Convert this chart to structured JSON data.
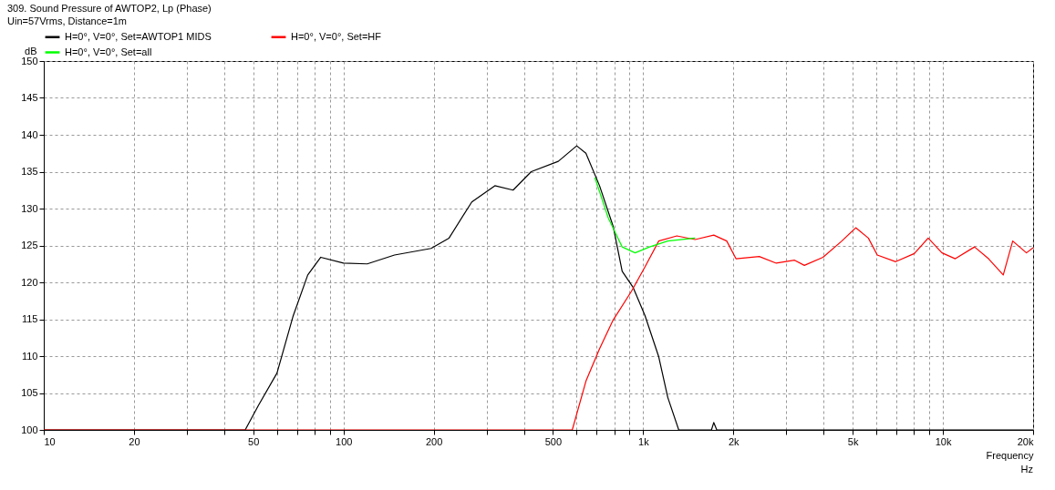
{
  "chart_data": {
    "type": "line",
    "title": "309. Sound Pressure of AWTOP2, Lp (Phase)",
    "subtitle": "Uin=57Vrms, Distance=1m",
    "xlabel": "Frequency",
    "ylabel": "dB",
    "annotations": [
      "Hz"
    ],
    "log": "x",
    "grid": true,
    "legend": "top left",
    "xlim": [
      10,
      20000
    ],
    "ylim": [
      100,
      150
    ],
    "xticks": [
      10,
      20,
      {
        "value": 30,
        "label": null
      },
      {
        "value": 40,
        "label": null
      },
      50,
      {
        "value": 60,
        "label": null
      },
      {
        "value": 70,
        "label": null
      },
      {
        "value": 80,
        "label": null
      },
      {
        "value": 90,
        "label": null
      },
      100,
      200,
      {
        "value": 300,
        "label": null
      },
      {
        "value": 400,
        "label": null
      },
      500,
      {
        "value": 600,
        "label": null
      },
      {
        "value": 700,
        "label": null
      },
      {
        "value": 800,
        "label": null
      },
      {
        "value": 900,
        "label": null
      },
      {
        "value": 1000,
        "label": "1k"
      },
      {
        "value": 2000,
        "label": "2k"
      },
      {
        "value": 3000,
        "label": null
      },
      {
        "value": 4000,
        "label": null
      },
      {
        "value": 5000,
        "label": "5k"
      },
      {
        "value": 6000,
        "label": null
      },
      {
        "value": 7000,
        "label": null
      },
      {
        "value": 8000,
        "label": null
      },
      {
        "value": 9000,
        "label": null
      },
      {
        "value": 10000,
        "label": "10k"
      },
      {
        "value": 20000,
        "label": "20k"
      }
    ],
    "yticks": [
      100,
      105,
      110,
      115,
      120,
      125,
      130,
      135,
      140,
      145,
      150
    ],
    "series": [
      {
        "name": "H=0°, V=0°, Set=AWTOP1 MIDS",
        "color": "#000000",
        "x": [
          10,
          47,
          52,
          60,
          68,
          76,
          84,
          100,
          120,
          148,
          196,
          225,
          268,
          320,
          368,
          423,
          521,
          600,
          644,
          715,
          794,
          851,
          926,
          1014,
          1127,
          1208,
          1314,
          1690,
          1720,
          1760,
          20000
        ],
        "values": [
          100,
          100,
          103.3,
          107.7,
          115.5,
          121,
          123.4,
          122.6,
          122.5,
          123.7,
          124.6,
          126,
          130.9,
          133.1,
          132.5,
          135,
          136.4,
          138.5,
          137.5,
          133.1,
          127.6,
          121.5,
          119.3,
          115.5,
          109.9,
          104.4,
          100,
          100,
          101,
          100,
          100
        ]
      },
      {
        "name": "H=0°, V=0°, Set=HF",
        "color": "#ff0000",
        "x": [
          10,
          580,
          644,
          715,
          794,
          914,
          1014,
          1127,
          1295,
          1490,
          1720,
          1900,
          2040,
          2440,
          2780,
          3200,
          3450,
          3980,
          4600,
          5120,
          5640,
          6040,
          6960,
          8030,
          8930,
          9930,
          11000,
          12750,
          14200,
          15900,
          17100,
          19000,
          20000
        ],
        "values": [
          100,
          100,
          106.6,
          111,
          114.9,
          118.8,
          122.1,
          125.6,
          126.3,
          125.8,
          126.4,
          125.6,
          123.2,
          123.5,
          122.6,
          123,
          122.3,
          123.4,
          125.6,
          127.4,
          126,
          123.7,
          122.8,
          123.9,
          126,
          124,
          123.2,
          124.8,
          123.2,
          121,
          125.6,
          124,
          124.7
        ]
      },
      {
        "name": "H=0°, V=0°, Set=all",
        "color": "#00ff00",
        "x": [
          690,
          765,
          851,
          940,
          1050,
          1208,
          1490
        ],
        "values": [
          134.2,
          128.7,
          124.8,
          124,
          124.8,
          125.6,
          126
        ]
      }
    ]
  }
}
